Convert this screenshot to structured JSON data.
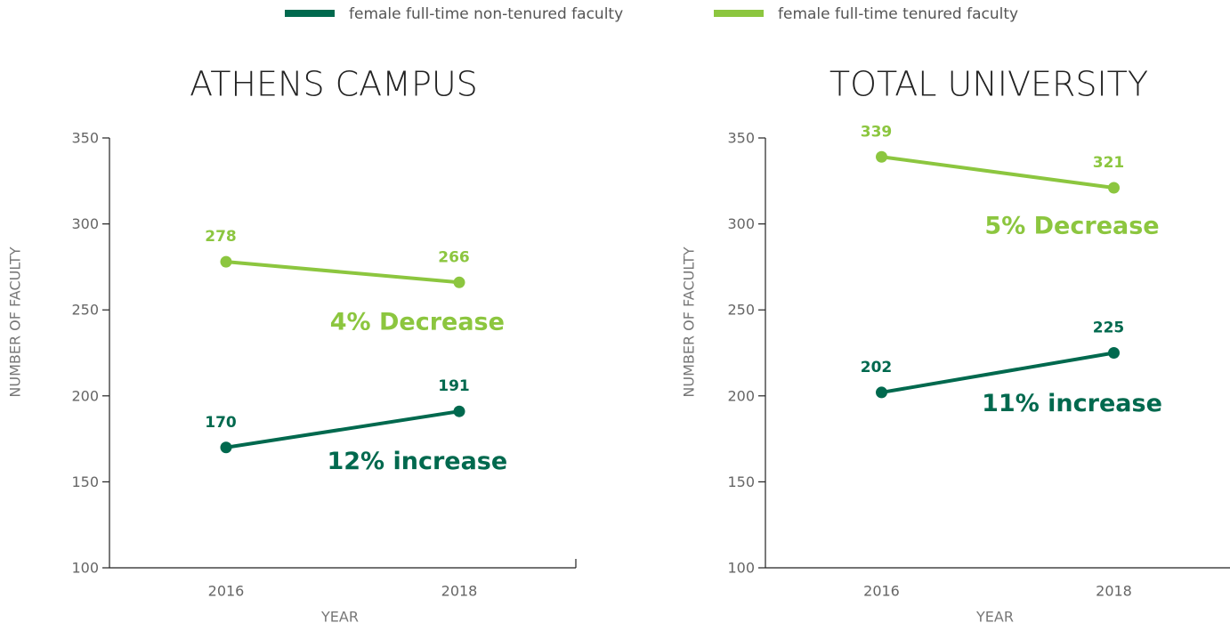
{
  "chart_data": [
    {
      "type": "line",
      "title": "ATHENS CAMPUS",
      "x_label": "YEAR",
      "y_label": "NUMBER OF FACULTY",
      "categories": [
        "2016",
        "2018"
      ],
      "series": [
        {
          "name": "female full-time non-tenured faculty",
          "color": "#00694e",
          "values": [
            170,
            191
          ],
          "annotation": "12% increase"
        },
        {
          "name": "female full-time tenured faculty",
          "color": "#8cc63f",
          "values": [
            278,
            266
          ],
          "annotation": "4% Decrease"
        }
      ],
      "ylim": [
        100,
        350
      ],
      "yticks": [
        100,
        150,
        200,
        250,
        300,
        350
      ]
    },
    {
      "type": "line",
      "title": "TOTAL UNIVERSITY",
      "x_label": "YEAR",
      "y_label": "NUMBER OF FACULTY",
      "categories": [
        "2016",
        "2018"
      ],
      "series": [
        {
          "name": "female full-time non-tenured faculty",
          "color": "#00694e",
          "values": [
            202,
            225
          ],
          "annotation": "11% increase"
        },
        {
          "name": "female full-time tenured faculty",
          "color": "#8cc63f",
          "values": [
            339,
            321
          ],
          "annotation": "5% Decrease"
        }
      ],
      "ylim": [
        100,
        350
      ],
      "yticks": [
        100,
        150,
        200,
        250,
        300,
        350
      ]
    }
  ]
}
